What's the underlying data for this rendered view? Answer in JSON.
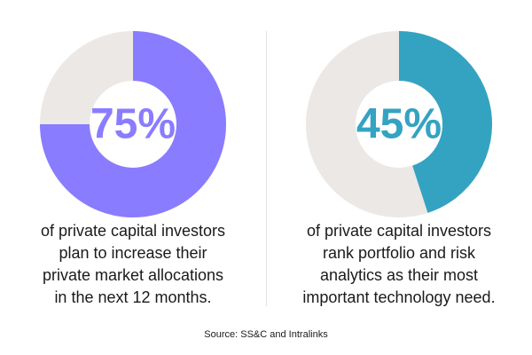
{
  "chart_data": [
    {
      "type": "pie",
      "value": 75,
      "center_label": "75%",
      "caption_lines": [
        "of private capital investors",
        "plan to increase their",
        "private market allocations",
        "in the next 12 months."
      ],
      "color": "#8a7cff",
      "track_color": "#ece8e5",
      "label_color": "#8a7cff",
      "start": "top",
      "direction": "clockwise"
    },
    {
      "type": "pie",
      "value": 45,
      "center_label": "45%",
      "caption_lines": [
        "of private capital investors",
        "rank portfolio and risk",
        "analytics as their most",
        "important technology need."
      ],
      "color": "#34a3c1",
      "track_color": "#ece8e5",
      "label_color": "#34a3c1",
      "start": "top",
      "direction": "clockwise"
    }
  ],
  "source": "Source: SS&C and Intralinks"
}
